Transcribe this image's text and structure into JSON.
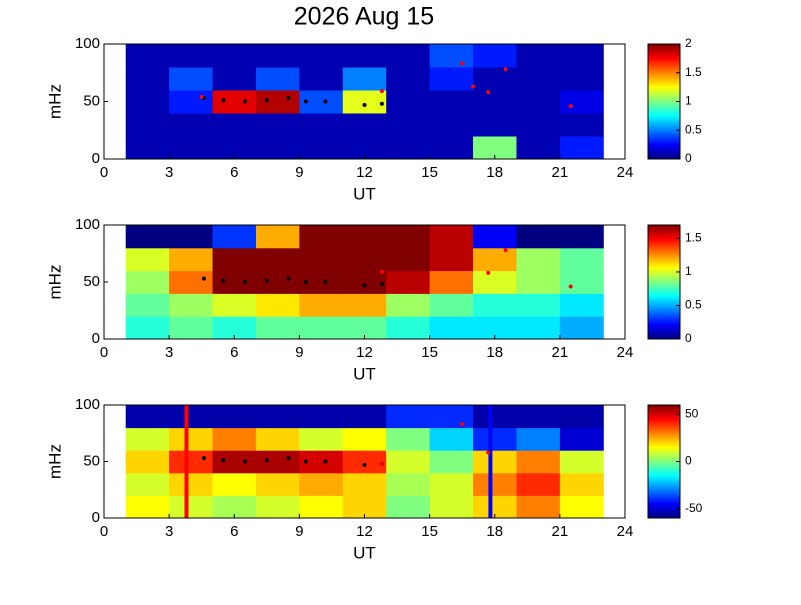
{
  "chart_data": [
    {
      "type": "heatmap",
      "title": "2026 Aug 15",
      "xlabel": "UT",
      "ylabel": "mHz",
      "xlim": [
        0,
        24
      ],
      "xticks": [
        0,
        3,
        6,
        9,
        12,
        15,
        18,
        21,
        24
      ],
      "ylim": [
        0,
        100
      ],
      "yticks": [
        0,
        50,
        100
      ],
      "xbins": [
        1,
        3,
        5,
        7,
        9,
        11,
        13,
        15,
        17,
        19,
        21,
        23
      ],
      "ybins": [
        0,
        20,
        40,
        60,
        80,
        100
      ],
      "z": [
        [
          0.1,
          0.1,
          0.1,
          0.1,
          0.1,
          0.1,
          0.1,
          0.1,
          1.0,
          0.1,
          0.3
        ],
        [
          0.1,
          0.1,
          0.1,
          0.1,
          0.1,
          0.1,
          0.1,
          0.1,
          0.1,
          0.1,
          0.1
        ],
        [
          0.1,
          0.3,
          1.8,
          1.9,
          0.4,
          1.2,
          0.1,
          0.1,
          0.1,
          0.1,
          0.2
        ],
        [
          0.1,
          0.4,
          0.1,
          0.4,
          0.1,
          0.5,
          0.1,
          0.3,
          0.1,
          0.1,
          0.1
        ],
        [
          0.1,
          0.1,
          0.1,
          0.1,
          0.1,
          0.1,
          0.1,
          0.4,
          0.3,
          0.1,
          0.1
        ]
      ],
      "clim": [
        0,
        2
      ],
      "cticks": [
        0,
        0.5,
        1,
        1.5,
        2
      ],
      "markers": [
        {
          "color": "#000000",
          "x": [
            4.6,
            5.5,
            6.5,
            7.5,
            8.5,
            9.3,
            10.2,
            12,
            12.8
          ],
          "y": [
            53,
            51,
            50,
            51,
            53,
            50,
            50,
            47,
            48
          ]
        },
        {
          "color": "#ff0000",
          "x": [
            4.5,
            12.8,
            16.5,
            17,
            17.7,
            18.5,
            21.5
          ],
          "y": [
            54,
            59,
            83,
            63,
            58,
            78,
            46
          ]
        }
      ]
    },
    {
      "type": "heatmap",
      "xlabel": "UT",
      "ylabel": "mHz",
      "xlim": [
        0,
        24
      ],
      "xticks": [
        0,
        3,
        6,
        9,
        12,
        15,
        18,
        21,
        24
      ],
      "ylim": [
        0,
        100
      ],
      "yticks": [
        0,
        50,
        100
      ],
      "xbins": [
        1,
        3,
        5,
        7,
        9,
        11,
        13,
        15,
        17,
        19,
        21,
        23
      ],
      "ybins": [
        0,
        20,
        40,
        60,
        80,
        100
      ],
      "z": [
        [
          0.7,
          0.8,
          0.7,
          0.8,
          0.8,
          0.8,
          0.7,
          0.6,
          0.6,
          0.6,
          0.5
        ],
        [
          0.8,
          0.9,
          1.0,
          1.1,
          1.2,
          1.2,
          0.9,
          0.8,
          0.7,
          0.7,
          0.6
        ],
        [
          0.9,
          1.3,
          1.7,
          1.7,
          1.7,
          1.7,
          1.6,
          1.3,
          1.0,
          0.9,
          0.8
        ],
        [
          1.0,
          1.2,
          1.7,
          1.7,
          1.7,
          1.7,
          1.7,
          1.6,
          1.2,
          0.9,
          0.8
        ],
        [
          0,
          0,
          0.3,
          1.2,
          1.7,
          1.7,
          1.7,
          1.6,
          0.2,
          0,
          0
        ]
      ],
      "clim": [
        0,
        1.7
      ],
      "cticks": [
        0,
        0.5,
        1,
        1.5
      ],
      "markers": [
        {
          "color": "#000000",
          "x": [
            4.6,
            5.5,
            6.5,
            7.5,
            8.5,
            9.3,
            10.2,
            12,
            12.8
          ],
          "y": [
            53,
            51,
            50,
            51,
            53,
            50,
            50,
            47,
            48
          ]
        },
        {
          "color": "#ff0000",
          "x": [
            12.8,
            17.7,
            18.5,
            21.5
          ],
          "y": [
            59,
            58,
            78,
            46
          ]
        }
      ]
    },
    {
      "type": "heatmap",
      "xlabel": "UT",
      "ylabel": "mHz",
      "xlim": [
        0,
        24
      ],
      "xticks": [
        0,
        3,
        6,
        9,
        12,
        15,
        18,
        21,
        24
      ],
      "ylim": [
        0,
        100
      ],
      "yticks": [
        0,
        50,
        100
      ],
      "xbins": [
        1,
        3,
        5,
        7,
        9,
        11,
        13,
        15,
        17,
        19,
        21,
        23
      ],
      "ybins": [
        0,
        20,
        40,
        60,
        80,
        100
      ],
      "z": [
        [
          15,
          10,
          5,
          10,
          15,
          20,
          0,
          10,
          20,
          30,
          15
        ],
        [
          10,
          20,
          15,
          20,
          25,
          20,
          5,
          10,
          30,
          40,
          20
        ],
        [
          20,
          40,
          55,
          55,
          50,
          40,
          10,
          0,
          20,
          30,
          10
        ],
        [
          10,
          20,
          30,
          20,
          10,
          15,
          0,
          -20,
          -40,
          -30,
          -50
        ],
        [
          -55,
          -55,
          -55,
          -55,
          -55,
          -55,
          -40,
          -40,
          -55,
          -55,
          -55
        ]
      ],
      "clim": [
        -60,
        60
      ],
      "cticks": [
        -50,
        0,
        50
      ],
      "markers": [
        {
          "color": "#000000",
          "x": [
            4.6,
            5.5,
            6.5,
            7.5,
            8.5,
            9.3,
            10.2,
            12,
            12.8
          ],
          "y": [
            53,
            51,
            50,
            51,
            53,
            50,
            50,
            47,
            48
          ]
        },
        {
          "color": "#ff0000",
          "x": [
            12.8,
            16.5,
            17.7
          ],
          "y": [
            48,
            83,
            58
          ]
        }
      ],
      "vlines": [
        {
          "x": 3.8,
          "color": "#ff0000"
        },
        {
          "x": 17.8,
          "color": "#0000ff"
        }
      ]
    }
  ]
}
